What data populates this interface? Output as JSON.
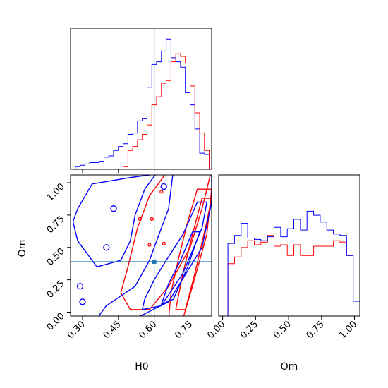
{
  "chart_data": [
    {
      "type": "histogram",
      "panel": "H0 marginal",
      "x_name": "H0",
      "xlim": [
        0.25,
        0.84
      ],
      "truth_line_x": 0.6,
      "ytick_labels": "none",
      "series": [
        {
          "color": "#0000ff",
          "step_type": "steps",
          "bin_edges": [
            0.25,
            0.27,
            0.29,
            0.31,
            0.33,
            0.35,
            0.37,
            0.39,
            0.41,
            0.43,
            0.45,
            0.47,
            0.49,
            0.51,
            0.53,
            0.55,
            0.57,
            0.59,
            0.61,
            0.63,
            0.65,
            0.67,
            0.69,
            0.71,
            0.73,
            0.75,
            0.77,
            0.79,
            0.81,
            0.83,
            0.85
          ],
          "heights": [
            0.0,
            0.02,
            0.03,
            0.04,
            0.05,
            0.05,
            0.06,
            0.09,
            0.1,
            0.14,
            0.17,
            0.19,
            0.26,
            0.27,
            0.36,
            0.38,
            0.61,
            0.78,
            0.8,
            0.88,
            0.97,
            0.83,
            0.8,
            0.76,
            0.57,
            0.48,
            0.3,
            0.12,
            0.11,
            0.0
          ]
        },
        {
          "color": "#ff0000",
          "step_type": "steps",
          "bin_edges": [
            0.47,
            0.49,
            0.51,
            0.53,
            0.55,
            0.57,
            0.59,
            0.61,
            0.63,
            0.65,
            0.67,
            0.69,
            0.71,
            0.73,
            0.75,
            0.77,
            0.79,
            0.81,
            0.83,
            0.85
          ],
          "heights": [
            0.02,
            0.14,
            0.17,
            0.22,
            0.26,
            0.33,
            0.48,
            0.54,
            0.64,
            0.66,
            0.8,
            0.86,
            0.84,
            0.79,
            0.62,
            0.42,
            0.27,
            0.14,
            0.0
          ]
        }
      ]
    },
    {
      "type": "contour",
      "panel": "H0 vs Om joint",
      "x_name": "H0",
      "y_name": "Om",
      "xlim": [
        0.25,
        0.84
      ],
      "ylim": [
        -0.03,
        1.06
      ],
      "truth_point": [
        0.6,
        0.39
      ],
      "series": [
        {
          "color": "#0000ff",
          "levels": 3,
          "centre": [
            0.6,
            0.4
          ]
        },
        {
          "color": "#ff0000",
          "levels": 3,
          "centre": [
            0.71,
            0.55
          ]
        }
      ]
    },
    {
      "type": "histogram",
      "panel": "Om marginal",
      "x_name": "Om",
      "xlim": [
        -0.03,
        1.04
      ],
      "truth_line_x": 0.39,
      "ytick_labels": "none",
      "series": [
        {
          "color": "#0000ff",
          "step_type": "steps",
          "bin_edges": [
            -0.01,
            0.04,
            0.09,
            0.14,
            0.19,
            0.24,
            0.29,
            0.34,
            0.39,
            0.44,
            0.49,
            0.54,
            0.59,
            0.64,
            0.69,
            0.74,
            0.79,
            0.84,
            0.89,
            0.94,
            0.99,
            1.04
          ],
          "heights": [
            0.0,
            0.54,
            0.6,
            0.69,
            0.58,
            0.57,
            0.56,
            0.59,
            0.66,
            0.59,
            0.65,
            0.72,
            0.64,
            0.78,
            0.75,
            0.7,
            0.64,
            0.61,
            0.6,
            0.45,
            0.11
          ]
        },
        {
          "color": "#ff0000",
          "step_type": "steps",
          "bin_edges": [
            -0.01,
            0.04,
            0.09,
            0.14,
            0.19,
            0.24,
            0.29,
            0.34,
            0.39,
            0.44,
            0.49,
            0.54,
            0.59,
            0.64,
            0.69,
            0.74,
            0.79,
            0.84,
            0.89,
            0.94,
            0.99
          ],
          "heights": [
            0.0,
            0.39,
            0.44,
            0.51,
            0.56,
            0.53,
            0.55,
            0.6,
            0.52,
            0.53,
            0.45,
            0.53,
            0.45,
            0.45,
            0.52,
            0.52,
            0.52,
            0.56,
            0.55,
            0.45
          ]
        }
      ]
    }
  ],
  "labels": {
    "xlabel_h0": "H0",
    "xlabel_om": "Om",
    "ylabel_om": "Om"
  },
  "ticks": {
    "h0": [
      {
        "value": 0.3,
        "label": "0.30"
      },
      {
        "value": 0.45,
        "label": "0.45"
      },
      {
        "value": 0.6,
        "label": "0.60"
      },
      {
        "value": 0.75,
        "label": "0.75"
      }
    ],
    "om_y": [
      {
        "value": 0.0,
        "label": "0.00"
      },
      {
        "value": 0.25,
        "label": "0.25"
      },
      {
        "value": 0.5,
        "label": "0.50"
      },
      {
        "value": 0.75,
        "label": "0.75"
      },
      {
        "value": 1.0,
        "label": "1.00"
      }
    ],
    "om_x": [
      {
        "value": 0.0,
        "label": "0.00"
      },
      {
        "value": 0.25,
        "label": "0.25"
      },
      {
        "value": 0.5,
        "label": "0.50"
      },
      {
        "value": 0.75,
        "label": "0.75"
      },
      {
        "value": 1.0,
        "label": "1.00"
      }
    ]
  },
  "colors": {
    "series_a": "#0000ff",
    "series_b": "#ff0000",
    "truth": "#1f77b4",
    "axes": "#000000"
  }
}
